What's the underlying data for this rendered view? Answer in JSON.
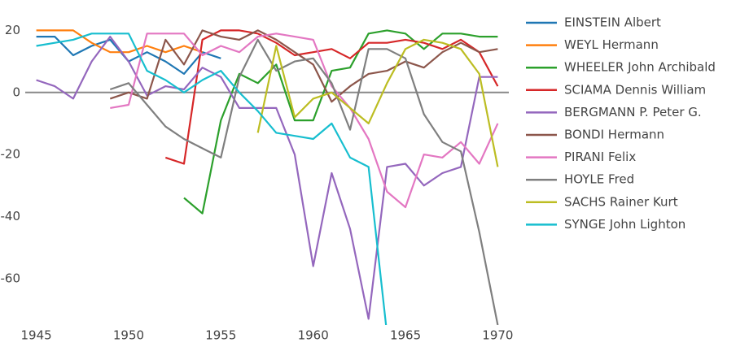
{
  "chart_data": {
    "type": "line",
    "x": [
      1945,
      1946,
      1947,
      1948,
      1949,
      1950,
      1951,
      1952,
      1953,
      1954,
      1955,
      1956,
      1957,
      1958,
      1959,
      1960,
      1961,
      1962,
      1963,
      1964,
      1965,
      1966,
      1967,
      1968,
      1969,
      1970
    ],
    "xlim": [
      1944.4,
      1970.6
    ],
    "xticks": [
      1945,
      1950,
      1955,
      1960,
      1965,
      1970
    ],
    "ylim": [
      -75,
      28.5
    ],
    "yticks": [
      -60,
      -40,
      -20,
      0,
      20
    ],
    "series": [
      {
        "name": "EINSTEIN Albert",
        "color": "#1f77b4",
        "values": [
          18,
          18,
          12,
          15,
          17,
          10,
          13,
          10,
          6,
          13,
          11,
          null,
          null,
          null,
          null,
          null,
          null,
          null,
          null,
          null,
          null,
          null,
          null,
          null,
          null,
          null
        ]
      },
      {
        "name": "WEYL Hermann",
        "color": "#ff7f0e",
        "values": [
          20,
          20,
          20,
          16,
          13,
          13,
          15,
          13,
          15,
          13,
          null,
          null,
          null,
          null,
          null,
          null,
          null,
          null,
          null,
          null,
          null,
          null,
          null,
          null,
          null,
          null
        ]
      },
      {
        "name": "WHEELER John Archibald",
        "color": "#2ca02c",
        "values": [
          null,
          null,
          null,
          null,
          null,
          null,
          null,
          null,
          -34,
          -39,
          -9,
          6,
          3,
          9,
          -9,
          -9,
          7,
          8,
          19,
          20,
          19,
          14,
          19,
          19,
          18,
          18
        ]
      },
      {
        "name": "SCIAMA Dennis William",
        "color": "#d62728",
        "values": [
          null,
          null,
          null,
          null,
          null,
          null,
          null,
          -21,
          -23,
          17,
          20,
          20,
          19,
          16,
          12,
          13,
          14,
          11,
          16,
          16,
          17,
          16,
          14,
          17,
          13,
          2
        ]
      },
      {
        "name": "BERGMANN P. Peter  G.",
        "color": "#9467bd",
        "values": [
          4,
          2,
          -2,
          10,
          18,
          10,
          -1,
          2,
          1,
          8,
          5,
          -5,
          -5,
          -5,
          -20,
          -56,
          -26,
          -44,
          -73,
          -24,
          -23,
          -30,
          -26,
          -24,
          5,
          5
        ]
      },
      {
        "name": "BONDI Hermann",
        "color": "#8c564b",
        "values": [
          null,
          null,
          null,
          null,
          -2,
          0,
          -2,
          17,
          9,
          20,
          18,
          17,
          20,
          17,
          13,
          9,
          -3,
          2,
          6,
          7,
          10,
          8,
          13,
          16,
          13,
          14
        ]
      },
      {
        "name": "PIRANI Felix",
        "color": "#e377c2",
        "values": [
          null,
          null,
          null,
          null,
          -5,
          -4,
          19,
          19,
          19,
          12,
          15,
          13,
          18,
          19,
          18,
          17,
          2,
          -5,
          -15,
          -32,
          -37,
          -20,
          -21,
          -16,
          -23,
          -10
        ]
      },
      {
        "name": "HOYLE Fred",
        "color": "#7f7f7f",
        "values": [
          null,
          null,
          null,
          null,
          1,
          3,
          -4,
          -11,
          -15,
          -18,
          -21,
          5,
          17,
          7,
          10,
          11,
          3,
          -12,
          14,
          14,
          11,
          -7,
          -16,
          -19,
          -45,
          -75
        ]
      },
      {
        "name": "SACHS Rainer Kurt",
        "color": "#bcbd22",
        "values": [
          null,
          null,
          null,
          null,
          null,
          null,
          null,
          null,
          null,
          null,
          null,
          null,
          -13,
          15,
          -8,
          -2,
          0,
          -5,
          -10,
          3,
          14,
          17,
          16,
          14,
          6,
          -24
        ]
      },
      {
        "name": "SYNGE John Lighton",
        "color": "#17becf",
        "values": [
          15,
          16,
          17,
          19,
          19,
          19,
          7,
          4,
          0,
          4,
          7,
          0,
          -6,
          -13,
          -14,
          -15,
          -10,
          -21,
          -24,
          -78,
          null,
          null,
          null,
          null,
          null,
          null
        ]
      }
    ]
  }
}
